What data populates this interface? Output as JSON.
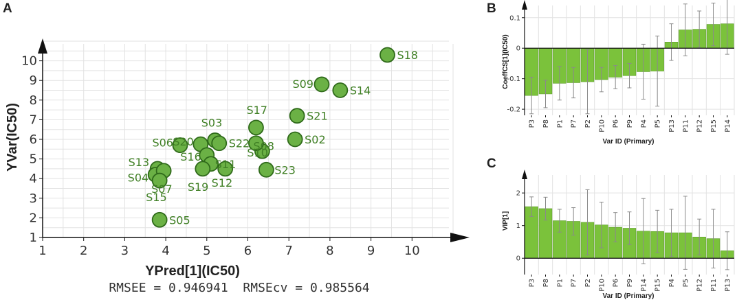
{
  "colors": {
    "point_fill": "#6bb145",
    "point_stroke": "#2f6a1a",
    "point_label": "#3f7f24",
    "bar_fill": "#7bc23b",
    "bar_stroke": "#5a9a25",
    "grid": "#e2e2e2",
    "axis": "#111111",
    "error_bar": "#8a8a8a"
  },
  "chart_data": [
    {
      "id": "A",
      "type": "scatter",
      "panel_letter": "A",
      "xlabel": "YPred[1](IC50)",
      "ylabel": "YVar(IC50)",
      "xlim": [
        1,
        11
      ],
      "ylim": [
        1,
        11
      ],
      "x_ticks": [
        1,
        2,
        3,
        4,
        5,
        6,
        7,
        8,
        9,
        10
      ],
      "y_ticks": [
        1,
        2,
        3,
        4,
        5,
        6,
        7,
        8,
        9,
        10
      ],
      "grid": true,
      "footer": "RMSEE = 0.946941  RMSEcv = 0.985564",
      "points": [
        {
          "label": "S18",
          "x": 9.4,
          "y": 10.3
        },
        {
          "label": "S09",
          "x": 7.8,
          "y": 8.8
        },
        {
          "label": "S14",
          "x": 8.25,
          "y": 8.5
        },
        {
          "label": "S21",
          "x": 7.2,
          "y": 7.2
        },
        {
          "label": "S17",
          "x": 6.2,
          "y": 6.6
        },
        {
          "label": "S02",
          "x": 7.15,
          "y": 6.0
        },
        {
          "label": "S03",
          "x": 5.2,
          "y": 5.95
        },
        {
          "label": "S22",
          "x": 5.3,
          "y": 5.8
        },
        {
          "label": "S10",
          "x": 6.35,
          "y": 5.4
        },
        {
          "label": "S06",
          "x": 4.35,
          "y": 5.7
        },
        {
          "label": "S20",
          "x": 4.85,
          "y": 5.75
        },
        {
          "label": "S16",
          "x": 5.0,
          "y": 5.2
        },
        {
          "label": "S11",
          "x": 5.1,
          "y": 4.75
        },
        {
          "label": "S12",
          "x": 5.45,
          "y": 4.5
        },
        {
          "label": "S19",
          "x": 4.9,
          "y": 4.5
        },
        {
          "label": "S08",
          "x": 6.2,
          "y": 5.8
        },
        {
          "label": "S23",
          "x": 6.45,
          "y": 4.45
        },
        {
          "label": "S13",
          "x": 3.8,
          "y": 4.5
        },
        {
          "label": "S04",
          "x": 3.75,
          "y": 4.2
        },
        {
          "label": "S07",
          "x": 3.95,
          "y": 4.4
        },
        {
          "label": "S15",
          "x": 3.85,
          "y": 3.9
        },
        {
          "label": "S05",
          "x": 3.85,
          "y": 1.9
        }
      ]
    },
    {
      "id": "B",
      "type": "bar",
      "panel_letter": "B",
      "xlabel": "Var ID (Primary)",
      "ylabel": "CoeffCS[1](IC50)",
      "ylim": [
        -0.22,
        0.14
      ],
      "y_ticks": [
        -0.2,
        -0.1,
        0,
        0.1
      ],
      "y_tick_labels": [
        "-0.2",
        "-0.1",
        "0",
        "0.1"
      ],
      "categories": [
        "P3",
        "P8",
        "P1",
        "P7",
        "P2",
        "P10",
        "P6",
        "P9",
        "P4",
        "P5",
        "P13",
        "P11",
        "P12",
        "P15",
        "P14"
      ],
      "values": [
        -0.155,
        -0.15,
        -0.115,
        -0.113,
        -0.11,
        -0.103,
        -0.095,
        -0.09,
        -0.077,
        -0.075,
        0.02,
        0.06,
        0.062,
        0.078,
        0.08
      ],
      "errors": [
        0.06,
        0.045,
        0.055,
        0.05,
        0.105,
        0.04,
        0.038,
        0.04,
        0.09,
        0.115,
        0.06,
        0.085,
        0.06,
        0.07,
        0.1
      ]
    },
    {
      "id": "C",
      "type": "bar",
      "panel_letter": "C",
      "xlabel": "Var ID (Primary)",
      "ylabel": "VIP[1]",
      "ylim": [
        -0.5,
        2.55
      ],
      "y_ticks": [
        0,
        1,
        2
      ],
      "y_tick_labels": [
        "0",
        "1",
        "2"
      ],
      "categories": [
        "P3",
        "P8",
        "P1",
        "P7",
        "P2",
        "P10",
        "P6",
        "P9",
        "P14",
        "P15",
        "P4",
        "P5",
        "P12",
        "P11",
        "P13"
      ],
      "values": [
        1.58,
        1.52,
        1.15,
        1.13,
        1.1,
        1.02,
        0.95,
        0.92,
        0.83,
        0.82,
        0.78,
        0.78,
        0.65,
        0.6,
        0.23
      ],
      "errors": [
        0.3,
        0.35,
        0.35,
        0.42,
        1.0,
        0.7,
        0.45,
        0.5,
        1.0,
        0.65,
        0.72,
        1.12,
        0.55,
        0.9,
        0.58
      ]
    }
  ]
}
